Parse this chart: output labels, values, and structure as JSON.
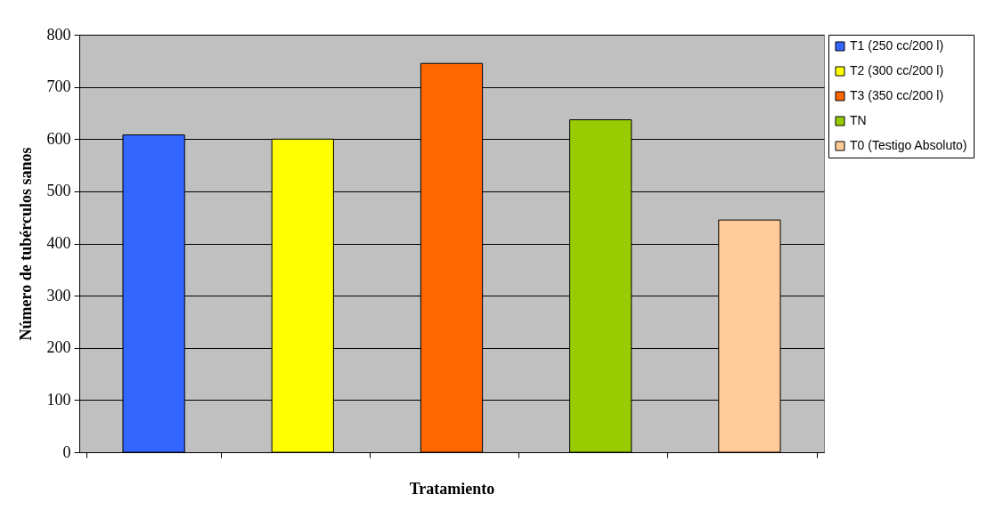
{
  "chart_data": {
    "type": "bar",
    "xlabel": "Tratamiento",
    "ylabel": "Número de tubérculos sanos",
    "categories": [
      null,
      null,
      null,
      null,
      null
    ],
    "series": [
      {
        "name": "T1 (250 cc/200 l)",
        "color": "#3366ff",
        "values": [
          608,
          null,
          null,
          null,
          null
        ]
      },
      {
        "name": "T2 (300 cc/200 l)",
        "color": "#ffff00",
        "values": [
          null,
          600,
          null,
          null,
          null
        ]
      },
      {
        "name": "T3 (350 cc/200 l)",
        "color": "#ff6600",
        "values": [
          null,
          null,
          745,
          null,
          null
        ]
      },
      {
        "name": "TN",
        "color": "#99cc00",
        "values": [
          null,
          null,
          null,
          637,
          null
        ]
      },
      {
        "name": "T0 (Testigo Absoluto)",
        "color": "#ffcc99",
        "values": [
          null,
          null,
          null,
          null,
          445
        ]
      }
    ],
    "ylim": [
      0,
      800
    ],
    "yticks": [
      0,
      100,
      200,
      300,
      400,
      500,
      600,
      700,
      800
    ],
    "grid": "y",
    "legend": "right"
  }
}
